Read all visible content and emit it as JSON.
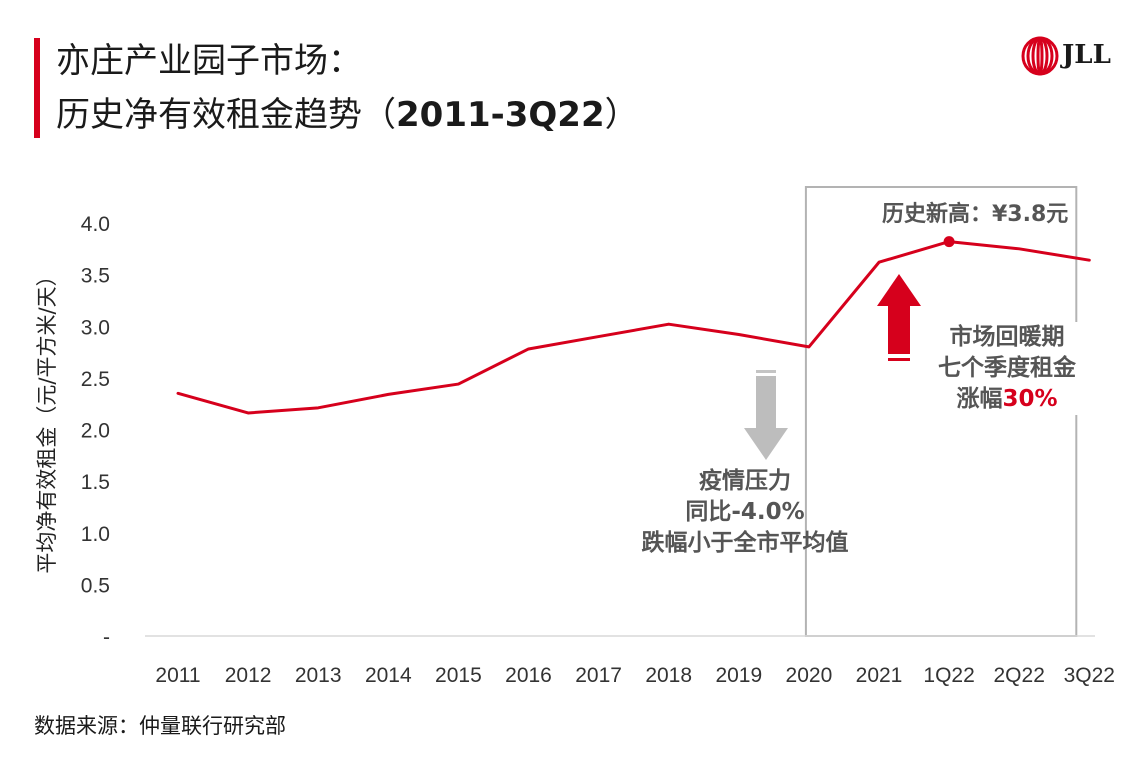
{
  "header": {
    "title_line1": "亦庄产业园子市场：",
    "title_line2_prefix": "历史净有效租金趋势（",
    "title_line2_years": "2011-3Q22",
    "title_line2_suffix": "）"
  },
  "logo": {
    "text": "JLL",
    "brand_color": "#d6001c"
  },
  "footer": {
    "source": "数据来源：仲量联行研究部"
  },
  "annotations": {
    "peak_label": "历史新高：¥3.8元",
    "pandemic": {
      "line1": "疫情压力",
      "line2": "同比-4.0%",
      "line3": "跌幅小于全市平均值"
    },
    "recovery": {
      "line1": "市场回暖期",
      "line2": "七个季度租金",
      "line3_prefix": "涨幅",
      "line3_pct": "30%"
    }
  },
  "chart_data": {
    "type": "line",
    "title": "",
    "xlabel": "",
    "ylabel": "平均净有效租金（元/平方米/天）",
    "categories": [
      "2011",
      "2012",
      "2013",
      "2014",
      "2015",
      "2016",
      "2017",
      "2018",
      "2019",
      "2020",
      "2021",
      "1Q22",
      "2Q22",
      "3Q22"
    ],
    "series": [
      {
        "values": [
          2.35,
          2.16,
          2.21,
          2.34,
          2.44,
          2.78,
          2.9,
          3.02,
          2.92,
          2.8,
          3.62,
          3.82,
          3.75,
          3.64
        ],
        "color": "#d6001c"
      }
    ],
    "ylim": [
      0,
      4.0
    ],
    "yticks": [
      0,
      0.5,
      1.0,
      1.5,
      2.0,
      2.5,
      3.0,
      3.5,
      4.0
    ],
    "ytick_labels": [
      "-",
      "0.5",
      "1.0",
      "1.5",
      "2.0",
      "2.5",
      "3.0",
      "3.5",
      "4.0"
    ],
    "peak_index": 11,
    "highlight_range": [
      "2020",
      "3Q22"
    ],
    "grid": false,
    "legend": "none"
  }
}
